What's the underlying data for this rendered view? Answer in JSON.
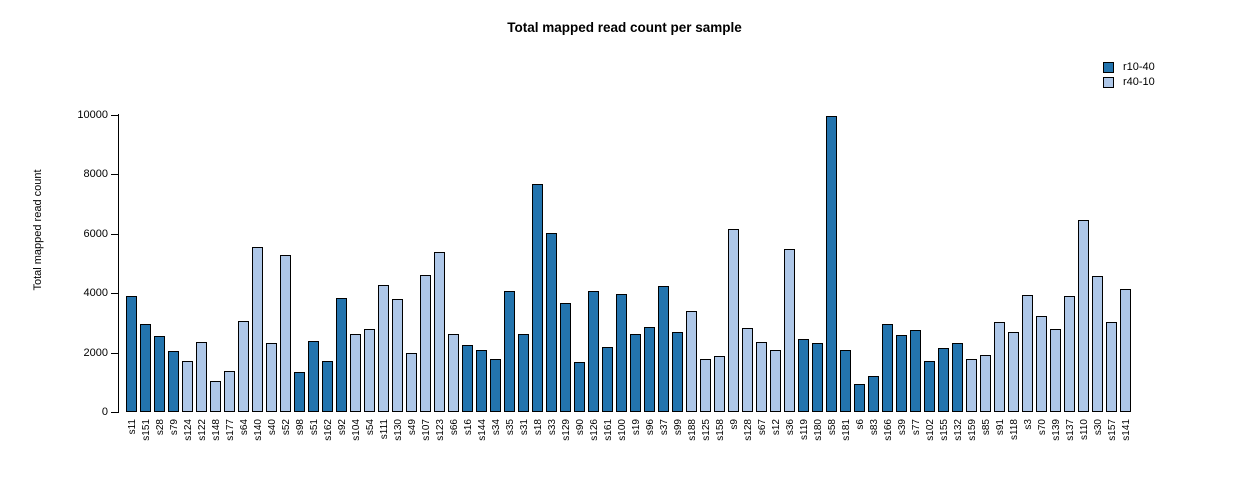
{
  "legend": {
    "items": [
      {
        "label": "r10-40",
        "color": "#2374AE"
      },
      {
        "label": "r40-10",
        "color": "#AEC7E8"
      }
    ]
  },
  "chart_data": {
    "type": "bar",
    "title": "Total mapped read count per sample",
    "xlabel": "",
    "ylabel": "Total mapped read count",
    "ylim": [
      0,
      10000
    ],
    "yticks": [
      0,
      2000,
      4000,
      6000,
      8000,
      10000
    ],
    "grid": false,
    "legend_position": "topright",
    "colors": {
      "r10-40": "#2374AE",
      "r40-10": "#AEC7E8"
    },
    "categories": [
      "s11",
      "s151",
      "s28",
      "s79",
      "s124",
      "s122",
      "s148",
      "s177",
      "s64",
      "s140",
      "s40",
      "s52",
      "s98",
      "s51",
      "s162",
      "s92",
      "s104",
      "s54",
      "s111",
      "s130",
      "s49",
      "s107",
      "s123",
      "s66",
      "s16",
      "s144",
      "s34",
      "s35",
      "s31",
      "s18",
      "s33",
      "s129",
      "s90",
      "s126",
      "s161",
      "s100",
      "s19",
      "s96",
      "s37",
      "s99",
      "s188",
      "s125",
      "s158",
      "s9",
      "s128",
      "s67",
      "s12",
      "s36",
      "s119",
      "s180",
      "s58",
      "s181",
      "s6",
      "s83",
      "s166",
      "s39",
      "s77",
      "s102",
      "s155",
      "s132",
      "s159",
      "s85",
      "s91",
      "s118",
      "s3",
      "s70",
      "s139",
      "s137",
      "s110",
      "s30",
      "s157",
      "s141"
    ],
    "values": [
      3900,
      2950,
      2550,
      2060,
      1710,
      2370,
      1060,
      1390,
      3080,
      5550,
      2310,
      5300,
      1350,
      2390,
      1720,
      3830,
      2610,
      2780,
      4270,
      3790,
      1970,
      4620,
      5390,
      2610,
      2250,
      2080,
      1780,
      4060,
      2630,
      7670,
      6030,
      3680,
      1670,
      4080,
      2190,
      3970,
      2610,
      2850,
      4240,
      2710,
      3410,
      1800,
      1880,
      6150,
      2830,
      2360,
      2080,
      5490,
      2450,
      2320,
      9950,
      2080,
      950,
      1220,
      2950,
      2590,
      2750,
      1710,
      2140,
      2340,
      1790,
      1910,
      3020,
      2680,
      3940,
      3230,
      2790,
      3900,
      6480,
      4570,
      3020,
      4130
    ],
    "groups": [
      "r10-40",
      "r10-40",
      "r10-40",
      "r10-40",
      "r40-10",
      "r40-10",
      "r40-10",
      "r40-10",
      "r40-10",
      "r40-10",
      "r40-10",
      "r40-10",
      "r10-40",
      "r10-40",
      "r10-40",
      "r10-40",
      "r40-10",
      "r40-10",
      "r40-10",
      "r40-10",
      "r40-10",
      "r40-10",
      "r40-10",
      "r40-10",
      "r10-40",
      "r10-40",
      "r10-40",
      "r10-40",
      "r10-40",
      "r10-40",
      "r10-40",
      "r10-40",
      "r10-40",
      "r10-40",
      "r10-40",
      "r10-40",
      "r10-40",
      "r10-40",
      "r10-40",
      "r10-40",
      "r40-10",
      "r40-10",
      "r40-10",
      "r40-10",
      "r40-10",
      "r40-10",
      "r40-10",
      "r40-10",
      "r10-40",
      "r10-40",
      "r10-40",
      "r10-40",
      "r10-40",
      "r10-40",
      "r10-40",
      "r10-40",
      "r10-40",
      "r10-40",
      "r10-40",
      "r10-40",
      "r40-10",
      "r40-10",
      "r40-10",
      "r40-10",
      "r40-10",
      "r40-10",
      "r40-10",
      "r40-10",
      "r40-10",
      "r40-10",
      "r40-10",
      "r40-10"
    ]
  }
}
